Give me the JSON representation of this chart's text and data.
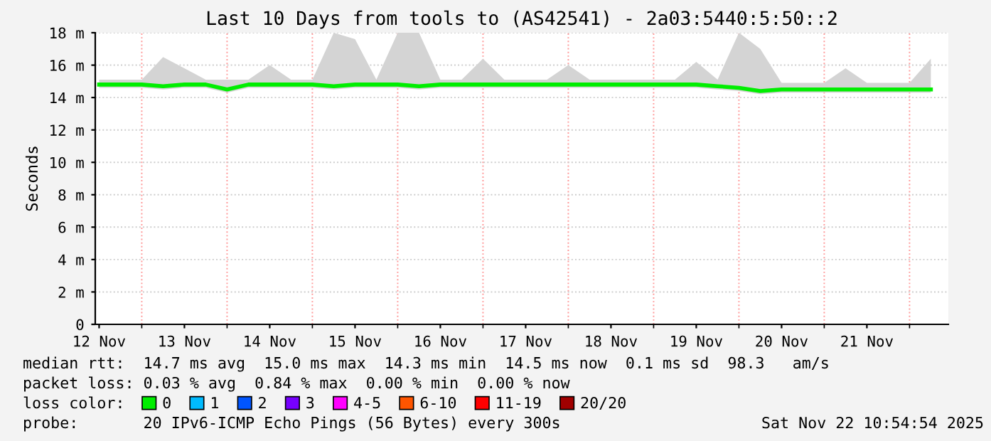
{
  "chart_data": {
    "type": "line",
    "title": "Last 10 Days from tools to (AS42541) - 2a03:5440:5:50::2",
    "ylabel": "Seconds",
    "x": [
      "2025-11-12T12:00",
      "2025-11-12T18:00",
      "2025-11-13T00:00",
      "2025-11-13T06:00",
      "2025-11-13T12:00",
      "2025-11-13T18:00",
      "2025-11-14T00:00",
      "2025-11-14T06:00",
      "2025-11-14T12:00",
      "2025-11-14T18:00",
      "2025-11-15T00:00",
      "2025-11-15T06:00",
      "2025-11-15T12:00",
      "2025-11-15T18:00",
      "2025-11-16T00:00",
      "2025-11-16T06:00",
      "2025-11-16T12:00",
      "2025-11-16T18:00",
      "2025-11-17T00:00",
      "2025-11-17T06:00",
      "2025-11-17T12:00",
      "2025-11-17T18:00",
      "2025-11-18T00:00",
      "2025-11-18T06:00",
      "2025-11-18T12:00",
      "2025-11-18T18:00",
      "2025-11-19T00:00",
      "2025-11-19T06:00",
      "2025-11-19T12:00",
      "2025-11-19T18:00",
      "2025-11-20T00:00",
      "2025-11-20T06:00",
      "2025-11-20T12:00",
      "2025-11-20T18:00",
      "2025-11-21T00:00",
      "2025-11-21T06:00",
      "2025-11-21T12:00",
      "2025-11-21T18:00",
      "2025-11-22T00:00",
      "2025-11-22T06:00"
    ],
    "series": [
      {
        "name": "0",
        "color": "#00ee00",
        "values": [
          14.8,
          14.8,
          14.8,
          14.7,
          14.8,
          14.8,
          14.5,
          14.8,
          14.8,
          14.8,
          14.8,
          14.7,
          14.8,
          14.8,
          14.8,
          14.7,
          14.8,
          14.8,
          14.8,
          14.8,
          14.8,
          14.8,
          14.8,
          14.8,
          14.8,
          14.8,
          14.8,
          14.8,
          14.8,
          14.7,
          14.6,
          14.4,
          14.5,
          14.5,
          14.5,
          14.5,
          14.5,
          14.5,
          14.5,
          14.5
        ],
        "lower": [
          14.6,
          14.6,
          14.6,
          14.5,
          14.6,
          14.6,
          14.3,
          14.6,
          14.6,
          14.6,
          14.6,
          14.5,
          14.6,
          14.6,
          14.6,
          14.5,
          14.6,
          14.6,
          14.6,
          14.6,
          14.6,
          14.6,
          14.6,
          14.6,
          14.6,
          14.6,
          14.6,
          14.6,
          14.6,
          14.5,
          14.4,
          14.2,
          14.3,
          14.3,
          14.3,
          14.3,
          14.3,
          14.3,
          14.3,
          14.3
        ],
        "upper": [
          15.1,
          15.1,
          15.1,
          16.5,
          15.8,
          15.1,
          15.1,
          15.1,
          16.0,
          15.1,
          15.1,
          18,
          17.6,
          15.1,
          18,
          18,
          15.1,
          15.1,
          16.4,
          15.1,
          15.1,
          15.1,
          16.0,
          15.1,
          15.1,
          15.1,
          15.1,
          15.1,
          16.2,
          15.1,
          18,
          17.0,
          14.9,
          14.9,
          14.9,
          15.8,
          14.9,
          14.9,
          14.9,
          16.4
        ]
      },
      {
        "name": "1",
        "color": "#00bbff",
        "values": [
          null,
          null,
          null,
          null,
          null,
          null,
          null,
          null,
          null,
          null,
          null,
          null,
          null,
          null,
          null,
          null,
          null,
          null,
          null,
          null,
          null,
          null,
          null,
          null,
          null,
          null,
          null,
          null,
          null,
          null,
          null,
          null,
          null,
          null,
          null,
          null,
          null,
          null,
          null,
          null
        ]
      },
      {
        "name": "2",
        "color": "#0055ff",
        "values": [
          null,
          null,
          null,
          null,
          null,
          null,
          null,
          null,
          null,
          null,
          null,
          null,
          null,
          null,
          null,
          null,
          null,
          null,
          null,
          null,
          null,
          null,
          null,
          null,
          null,
          null,
          null,
          null,
          null,
          null,
          null,
          null,
          null,
          null,
          null,
          null,
          null,
          null,
          null,
          null
        ]
      },
      {
        "name": "3",
        "color": "#7700ff",
        "values": [
          null,
          null,
          null,
          null,
          null,
          null,
          null,
          null,
          null,
          null,
          null,
          null,
          null,
          null,
          null,
          null,
          null,
          null,
          null,
          null,
          null,
          null,
          null,
          null,
          null,
          null,
          null,
          null,
          null,
          null,
          null,
          null,
          null,
          null,
          null,
          null,
          null,
          null,
          null,
          null
        ]
      },
      {
        "name": "4-5",
        "color": "#ff00ff",
        "values": [
          null,
          null,
          null,
          null,
          null,
          null,
          null,
          null,
          null,
          null,
          null,
          null,
          null,
          null,
          null,
          null,
          null,
          null,
          null,
          null,
          null,
          null,
          null,
          null,
          null,
          null,
          null,
          null,
          null,
          null,
          null,
          null,
          null,
          null,
          null,
          null,
          null,
          null,
          null,
          null
        ]
      },
      {
        "name": "6-10",
        "color": "#ff5500",
        "values": [
          null,
          null,
          null,
          null,
          null,
          null,
          null,
          null,
          null,
          null,
          null,
          null,
          null,
          null,
          null,
          null,
          null,
          null,
          null,
          null,
          null,
          null,
          null,
          null,
          null,
          null,
          null,
          null,
          null,
          null,
          null,
          null,
          null,
          null,
          null,
          null,
          null,
          null,
          null,
          null
        ]
      },
      {
        "name": "11-19",
        "color": "#ff0000",
        "values": [
          null,
          null,
          null,
          null,
          null,
          null,
          null,
          null,
          null,
          null,
          null,
          null,
          null,
          null,
          null,
          null,
          null,
          null,
          null,
          null,
          null,
          null,
          null,
          null,
          null,
          null,
          null,
          null,
          null,
          null,
          null,
          null,
          null,
          null,
          null,
          null,
          null,
          null,
          null,
          null
        ]
      },
      {
        "name": "20/20",
        "color": "#a10000",
        "values": [
          null,
          null,
          null,
          null,
          null,
          null,
          null,
          null,
          null,
          null,
          null,
          null,
          null,
          null,
          null,
          null,
          null,
          null,
          null,
          null,
          null,
          null,
          null,
          null,
          null,
          null,
          null,
          null,
          null,
          null,
          null,
          null,
          null,
          null,
          null,
          null,
          null,
          null,
          null,
          null
        ]
      }
    ],
    "xlim": [
      "2025-11-12T10:55",
      "2025-11-22T10:55"
    ],
    "xticks": [
      {
        "value": "2025-11-12T12:00",
        "label": "12 Nov"
      },
      {
        "value": "2025-11-13T12:00",
        "label": "13 Nov"
      },
      {
        "value": "2025-11-14T12:00",
        "label": "14 Nov"
      },
      {
        "value": "2025-11-15T12:00",
        "label": "15 Nov"
      },
      {
        "value": "2025-11-16T12:00",
        "label": "16 Nov"
      },
      {
        "value": "2025-11-17T12:00",
        "label": "17 Nov"
      },
      {
        "value": "2025-11-18T12:00",
        "label": "18 Nov"
      },
      {
        "value": "2025-11-19T12:00",
        "label": "19 Nov"
      },
      {
        "value": "2025-11-20T12:00",
        "label": "20 Nov"
      },
      {
        "value": "2025-11-21T12:00",
        "label": "21 Nov"
      },
      {
        "value": "2025-11-13T00:00",
        "label": null
      },
      {
        "value": "2025-11-14T00:00",
        "label": null
      },
      {
        "value": "2025-11-15T00:00",
        "label": null
      },
      {
        "value": "2025-11-16T00:00",
        "label": null
      },
      {
        "value": "2025-11-17T00:00",
        "label": null
      },
      {
        "value": "2025-11-18T00:00",
        "label": null
      },
      {
        "value": "2025-11-19T00:00",
        "label": null
      },
      {
        "value": "2025-11-20T00:00",
        "label": null
      },
      {
        "value": "2025-11-21T00:00",
        "label": null
      },
      {
        "value": "2025-11-22T00:00",
        "label": null
      }
    ],
    "ylim": [
      0,
      18
    ],
    "yticks": [
      0,
      {
        "value": 2,
        "label": "2 m"
      },
      {
        "value": 4,
        "label": "4 m"
      },
      {
        "value": 6,
        "label": "6 m"
      },
      {
        "value": 8,
        "label": "8 m"
      },
      {
        "value": 10,
        "label": "10 m"
      },
      {
        "value": 12,
        "label": "12 m"
      },
      {
        "value": 14,
        "label": "14 m"
      },
      {
        "value": 16,
        "label": "16 m"
      },
      {
        "value": 18,
        "label": "18 m"
      }
    ],
    "grid": true,
    "legend": "bottom",
    "annotations": [
      "median rtt:  14.7 ms avg  15.0 ms max  14.3 ms min  14.5 ms now  0.1 ms sd  98.3   am/s",
      "packet loss: 0.03 % avg  0.84 % max  0.00 % min  0.00 % now",
      "loss color:",
      "probe:       20 IPv6-ICMP Echo Pings (56 Bytes) every 300s",
      "Sat Nov 22 10:54:54 2025"
    ]
  }
}
